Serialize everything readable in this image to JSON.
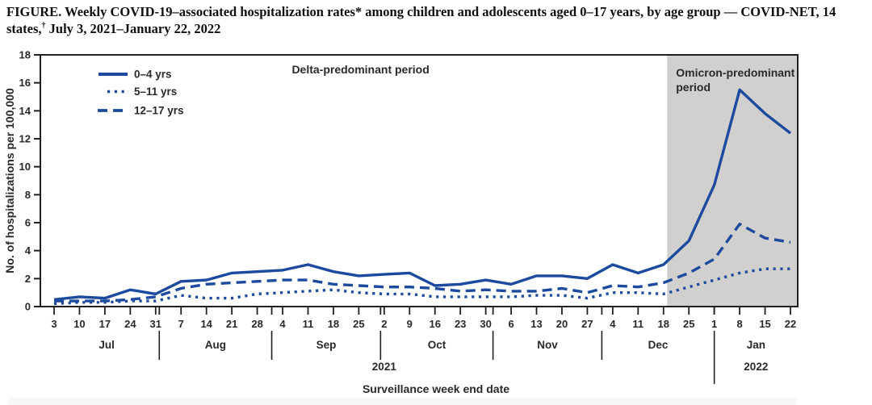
{
  "figure": {
    "title_main": "FIGURE. Weekly COVID-19–associated hospitalization rates* among children and adolescents aged 0–17 years, by age group — COVID-NET, 14 states,",
    "title_dagger": "†",
    "title_tail": " July 3, 2021–January 22, 2022"
  },
  "chart_data": {
    "type": "line",
    "xlabel": "Surveillance week end date",
    "ylabel": "No. of hospitalizations per 100,000",
    "ylim": [
      0,
      18
    ],
    "ytick_step": 2,
    "grid": false,
    "legend_position": "top-left-inside",
    "week_labels": [
      "3",
      "10",
      "17",
      "24",
      "31",
      "7",
      "14",
      "21",
      "28",
      "4",
      "11",
      "18",
      "25",
      "2",
      "9",
      "16",
      "23",
      "30",
      "6",
      "13",
      "20",
      "27",
      "4",
      "11",
      "18",
      "25",
      "1",
      "8",
      "15",
      "22"
    ],
    "month_labels": [
      "Jul",
      "Aug",
      "Sep",
      "Oct",
      "Nov",
      "Dec",
      "Jan"
    ],
    "month_start_days": [
      0,
      29,
      60,
      90,
      121,
      151,
      182
    ],
    "axis_end_day": 203,
    "year_labels": [
      "2021",
      "2022"
    ],
    "year_divider_day": 182,
    "series": [
      {
        "name": "0–4 yrs",
        "style": "solid",
        "values": [
          0.5,
          0.7,
          0.6,
          1.2,
          0.9,
          1.8,
          1.9,
          2.4,
          2.5,
          2.6,
          3.0,
          2.5,
          2.2,
          2.3,
          2.4,
          1.5,
          1.6,
          1.9,
          1.6,
          2.2,
          2.2,
          2.0,
          3.0,
          2.4,
          3.0,
          4.7,
          8.7,
          15.5,
          13.8,
          12.4
        ]
      },
      {
        "name": "5–11 yrs",
        "style": "dotted",
        "values": [
          0.2,
          0.3,
          0.3,
          0.4,
          0.4,
          0.8,
          0.6,
          0.6,
          0.9,
          1.0,
          1.1,
          1.2,
          1.0,
          0.9,
          0.9,
          0.7,
          0.7,
          0.7,
          0.7,
          0.8,
          0.8,
          0.6,
          1.0,
          1.0,
          0.9,
          1.4,
          1.9,
          2.4,
          2.7,
          2.7
        ]
      },
      {
        "name": "12–17 yrs",
        "style": "dashed",
        "values": [
          0.4,
          0.4,
          0.4,
          0.5,
          0.7,
          1.3,
          1.6,
          1.7,
          1.8,
          1.9,
          1.9,
          1.6,
          1.5,
          1.4,
          1.4,
          1.3,
          1.1,
          1.2,
          1.1,
          1.1,
          1.3,
          1.0,
          1.5,
          1.4,
          1.7,
          2.4,
          3.4,
          5.9,
          4.9,
          4.6
        ]
      }
    ],
    "periods": [
      {
        "label_lines": [
          "Delta-predominant period"
        ],
        "start_day": 0,
        "end_day": 169,
        "shaded": false
      },
      {
        "label_lines": [
          "Omicron-predominant",
          "period"
        ],
        "start_day": 169,
        "end_day": 206,
        "shaded": true
      }
    ],
    "colors": {
      "line_blue": "#1b4a9f",
      "shade_gray": "#d1d0ce",
      "axis": "#231f20",
      "text": "#2b2829"
    }
  }
}
